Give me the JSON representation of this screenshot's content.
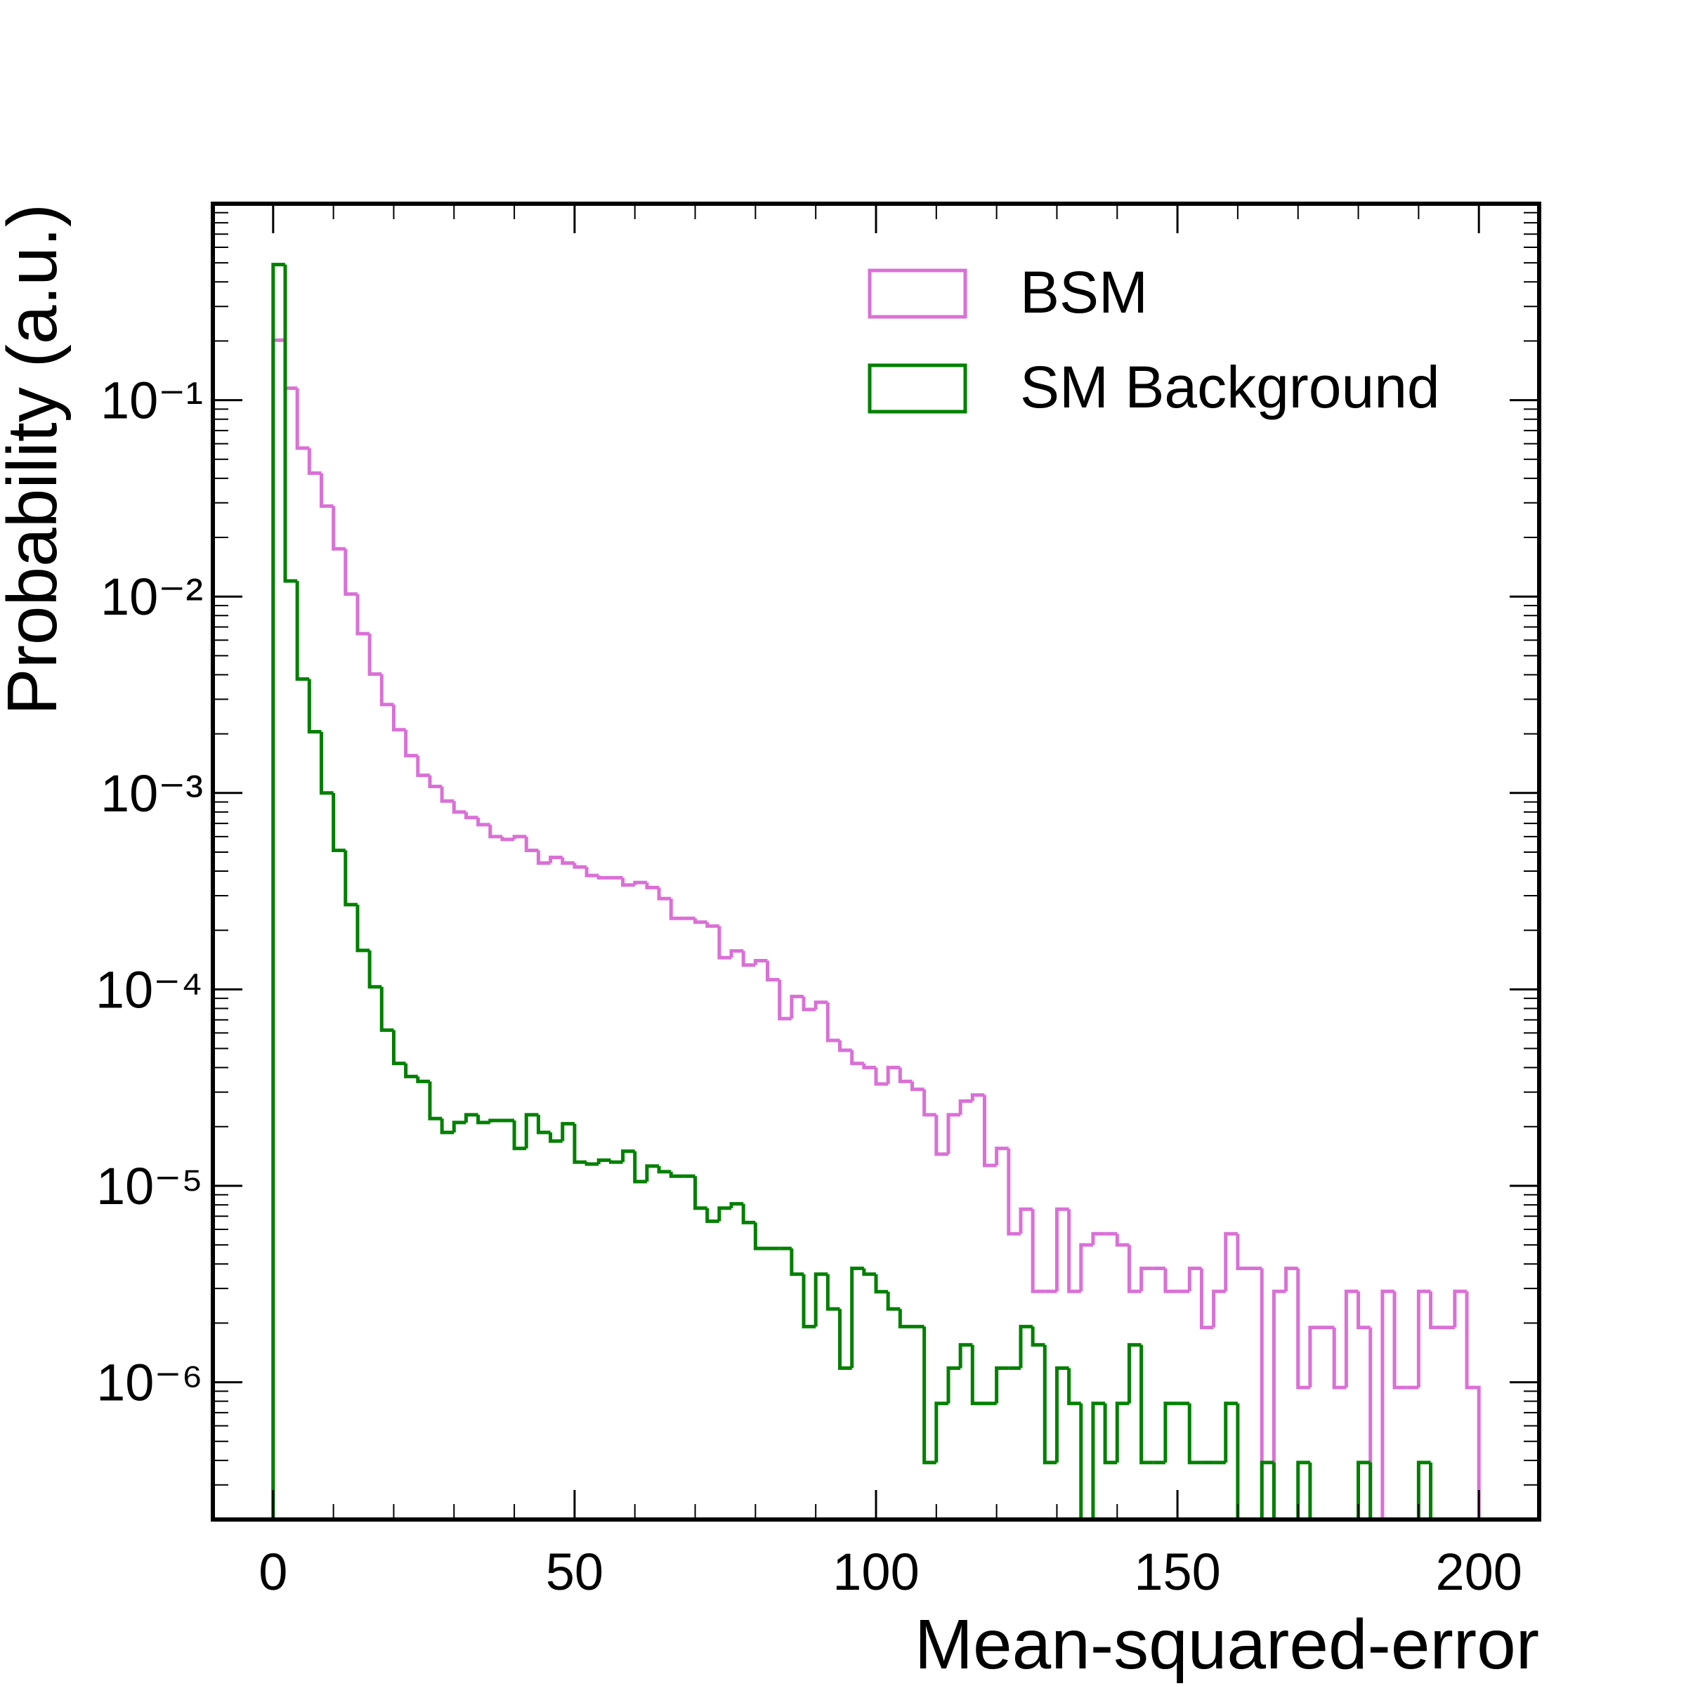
{
  "chart_data": {
    "type": "histogram",
    "xlabel": "Mean-squared-error",
    "ylabel": "Probability (a.u.)",
    "log_y": true,
    "legend": "upper right",
    "xlim": [
      -10,
      210
    ],
    "xticks": [
      0,
      50,
      100,
      150,
      200
    ],
    "ylim": [
      2e-07,
      1
    ],
    "yticks": [
      {
        "value": 1e-06,
        "label": "10⁻⁶"
      },
      {
        "value": 1e-05,
        "label": "10⁻⁵"
      },
      {
        "value": 0.0001,
        "label": "10⁻⁴"
      },
      {
        "value": 0.001,
        "label": "10⁻³"
      },
      {
        "value": 0.01,
        "label": "10⁻²"
      },
      {
        "value": 0.1,
        "label": "10⁻¹"
      }
    ],
    "bins": [
      0,
      2,
      4,
      6,
      8,
      10,
      12,
      14,
      16,
      18,
      20,
      22,
      24,
      26,
      28,
      30,
      32,
      34,
      36,
      38,
      40,
      42,
      44,
      46,
      48,
      50,
      52,
      54,
      56,
      58,
      60,
      62,
      64,
      66,
      68,
      70,
      72,
      74,
      76,
      78,
      80,
      82,
      84,
      86,
      88,
      90,
      92,
      94,
      96,
      98,
      100,
      102,
      104,
      106,
      108,
      110,
      112,
      114,
      116,
      118,
      120,
      122,
      124,
      126,
      128,
      130,
      132,
      134,
      136,
      138,
      140,
      142,
      144,
      146,
      148,
      150,
      152,
      154,
      156,
      158,
      160,
      162,
      164,
      166,
      168,
      170,
      172,
      174,
      176,
      178,
      180,
      182,
      184,
      186,
      188,
      190,
      192,
      194,
      196,
      198,
      200
    ],
    "series": [
      {
        "name": "BSM",
        "color": "#da70d6",
        "values": [
          0.202,
          0.115,
          0.057,
          0.0425,
          0.0289,
          0.0175,
          0.0103,
          0.00647,
          0.00403,
          0.00282,
          0.0021,
          0.00155,
          0.00123,
          0.00108,
          0.00091,
          0.0008,
          0.00075,
          0.00069,
          0.0006,
          0.00058,
          0.0006,
          0.00051,
          0.00044,
          0.00047,
          0.00044,
          0.00042,
          0.00038,
          0.00037,
          0.00037,
          0.00034,
          0.00035,
          0.00033,
          0.00029,
          0.00023,
          0.00023,
          0.00022,
          0.00021,
          0.000145,
          0.000157,
          0.000133,
          0.00014,
          0.000112,
          7.1e-05,
          9.2e-05,
          7.9e-05,
          8.6e-05,
          5.5e-05,
          4.9e-05,
          4.2e-05,
          4e-05,
          3.3e-05,
          4e-05,
          3.4e-05,
          3.1e-05,
          2.3e-05,
          1.45e-05,
          2.3e-05,
          2.7e-05,
          2.9e-05,
          1.27e-05,
          1.55e-05,
          5.7e-06,
          7.6e-06,
          2.9e-06,
          2.9e-06,
          7.6e-06,
          2.9e-06,
          5e-06,
          5.7e-06,
          5.7e-06,
          5e-06,
          2.9e-06,
          3.8e-06,
          3.8e-06,
          2.9e-06,
          2.9e-06,
          3.8e-06,
          1.9e-06,
          2.9e-06,
          5.7e-06,
          3.8e-06,
          3.8e-06,
          0,
          2.9e-06,
          3.8e-06,
          9.4e-07,
          1.9e-06,
          1.9e-06,
          9.4e-07,
          2.9e-06,
          1.9e-06,
          0,
          2.9e-06,
          9.4e-07,
          9.4e-07,
          2.9e-06,
          1.9e-06,
          1.9e-06,
          2.9e-06,
          9.4e-07
        ]
      },
      {
        "name": "SM Background",
        "color": "#008000",
        "values": [
          0.49,
          0.012,
          0.0038,
          0.00205,
          0.001,
          0.00051,
          0.00027,
          0.000158,
          0.000103,
          6.2e-05,
          4.2e-05,
          3.6e-05,
          3.4e-05,
          2.2e-05,
          1.87e-05,
          2.1e-05,
          2.3e-05,
          2.1e-05,
          2.15e-05,
          2.15e-05,
          1.55e-05,
          2.3e-05,
          1.87e-05,
          1.69e-05,
          2.07e-05,
          1.32e-05,
          1.29e-05,
          1.35e-05,
          1.32e-05,
          1.5e-05,
          1.05e-05,
          1.26e-05,
          1.18e-05,
          1.12e-05,
          1.12e-05,
          7.7e-06,
          6.6e-06,
          7.7e-06,
          8.1e-06,
          6.5e-06,
          4.8e-06,
          4.8e-06,
          4.8e-06,
          3.55e-06,
          1.92e-06,
          3.55e-06,
          2.36e-06,
          1.18e-06,
          3.8e-06,
          3.55e-06,
          2.89e-06,
          2.36e-06,
          1.92e-06,
          1.92e-06,
          3.9e-07,
          7.8e-07,
          1.18e-06,
          1.55e-06,
          7.8e-07,
          7.8e-07,
          1.18e-06,
          1.18e-06,
          1.92e-06,
          1.55e-06,
          3.9e-07,
          1.18e-06,
          7.8e-07,
          0,
          7.8e-07,
          3.9e-07,
          7.8e-07,
          1.55e-06,
          3.9e-07,
          3.9e-07,
          7.8e-07,
          7.8e-07,
          3.9e-07,
          3.9e-07,
          3.9e-07,
          7.8e-07,
          0,
          0,
          3.9e-07,
          0,
          0,
          3.9e-07,
          0,
          0,
          0,
          0,
          3.9e-07,
          0,
          0,
          0,
          0,
          3.9e-07,
          0,
          0,
          0,
          0
        ]
      }
    ]
  }
}
